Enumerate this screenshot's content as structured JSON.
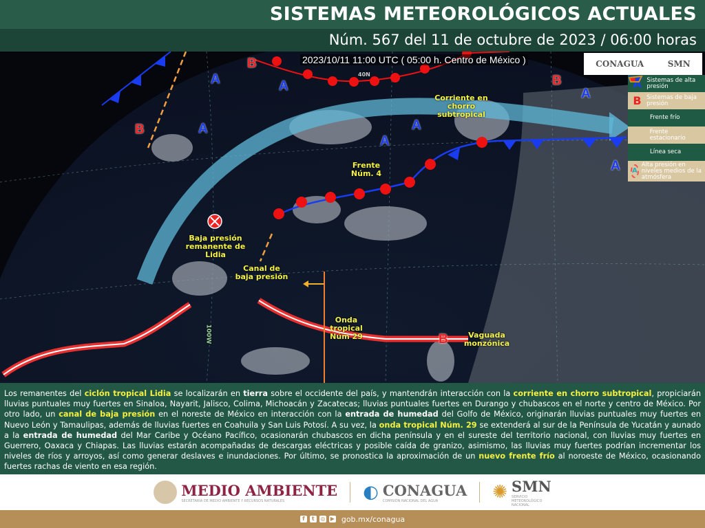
{
  "header": {
    "title": "SISTEMAS METEOROLÓGICOS ACTUALES",
    "subtitle": "Núm. 567 del 11 de octubre de 2023 / 06:00 horas"
  },
  "map": {
    "timestamp": "2023/10/11 11:00 UTC ( 05:00 h. Centro de México )",
    "grid_labels": {
      "lat": "40N",
      "lon": "100W"
    },
    "labels": {
      "jet": "Corriente en chorro subtropical",
      "front": "Frente Núm. 4",
      "lidia": "Baja presión remanente de Lidia",
      "canal": "Canal de baja presión",
      "onda": "Onda tropical Núm 29",
      "vaguada": "Vaguada monzónica"
    },
    "high_symbol": "A",
    "low_symbol": "B",
    "colors": {
      "high": "#1a3cf0",
      "low": "#ee2222",
      "jet": "#5fb8d8",
      "dry_line": "#f0a040",
      "trough": "#e83030"
    }
  },
  "logos_top": {
    "conagua": "CONAGUA",
    "smn": "SMN"
  },
  "legend": [
    {
      "icon": "A",
      "label": "Sistemas de alta presión"
    },
    {
      "icon": "B",
      "label": "Sistemas de baja presión"
    },
    {
      "icon": "cold-front",
      "label": "Frente frío"
    },
    {
      "icon": "stationary-front",
      "label": "Frente estacionario"
    },
    {
      "icon": "dry-line",
      "label": "Línea seca"
    },
    {
      "icon": "A",
      "label": "Alta presión en niveles medios de la atmósfera"
    }
  ],
  "description": {
    "p1": "Los remanentes del ",
    "h1": "ciclón tropical Lidia",
    "p2": " se localizarán en ",
    "b1": "tierra",
    "p3": " sobre el occidente del país, y mantendrán interacción con la ",
    "h2": "corriente en chorro subtropical",
    "p4": ", propiciarán lluvias puntuales muy fuertes en Sinaloa, Nayarit, Jalisco, Colima, Michoacán y Zacatecas; lluvias puntuales fuertes en Durango y chubascos en el norte y centro de México. Por otro lado, un ",
    "h3": "canal de baja presión",
    "p5": " en el noreste de México en interacción con la ",
    "b2": "entrada de humedad",
    "p6": " del Golfo de México, originarán lluvias puntuales muy fuertes en Nuevo León y Tamaulipas, además de lluvias fuertes en Coahuila y San Luis Potosí. A su vez, la ",
    "h4": "onda tropical Núm. 29",
    "p7": " se extenderá al sur de la Península de Yucatán y aunado a la ",
    "b3": "entrada de humedad",
    "p8": " del Mar Caribe y Océano Pacífico, ocasionarán chubascos en dicha península y en el sureste del territorio nacional, con lluvias muy fuertes en Guerrero, Oaxaca y Chiapas. Las lluvias estarán acompañadas de descargas eléctricas y posible caída de granizo, asimismo, las lluvias muy fuertes podrían incrementar los niveles de ríos y arroyos, así como generar deslaves e inundaciones. Por último, se pronostica la aproximación de un ",
    "h5": "nuevo frente frío",
    "p9": " al noroeste de México, ocasionando fuertes rachas de viento en esa región."
  },
  "footer_logos": {
    "medio_ambiente": "MEDIO AMBIENTE",
    "medio_ambiente_sub": "SECRETARÍA DE MEDIO AMBIENTE Y RECURSOS NATURALES",
    "conagua": "CONAGUA",
    "conagua_sub": "COMISIÓN NACIONAL DEL AGUA",
    "smn": "SMN",
    "smn_sub": "SERVICIO METEOROLÓGICO NACIONAL"
  },
  "footer": {
    "url": "gob.mx/conagua",
    "social": [
      "facebook-icon",
      "twitter-icon",
      "instagram-icon",
      "youtube-icon"
    ]
  }
}
